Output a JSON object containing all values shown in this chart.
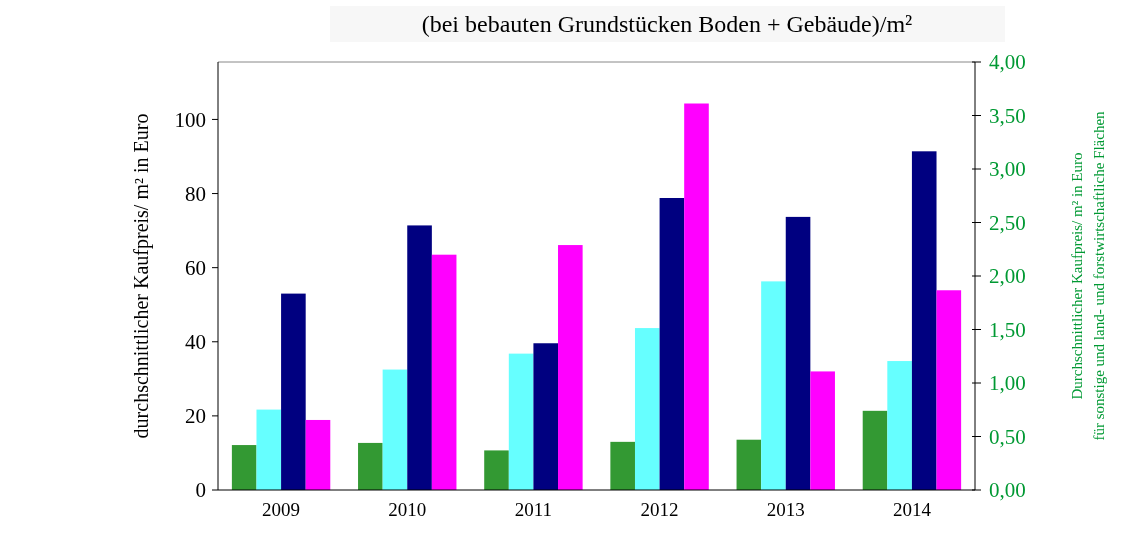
{
  "chart_data": {
    "type": "bar",
    "title": "(bei bebauten Grundstücken Boden + Gebäude)/m²",
    "ylabel": "durchschnittlicher Kaufpreis/ m² in Euro",
    "y2label": "Durchschnittlicher Kaufpreis/ m² in Euro\nfür sonstige und land- und forstwirtschaftliche Flächen",
    "categories": [
      "2009",
      "2010",
      "2011",
      "2012",
      "2013",
      "2014"
    ],
    "series": [
      {
        "color": "#339933",
        "axis": "y2",
        "values": [
          0.42,
          0.44,
          0.37,
          0.45,
          0.47,
          0.74
        ]
      },
      {
        "color": "#66ffff",
        "values": [
          21.7,
          32.5,
          36.8,
          43.7,
          56.3,
          34.8
        ]
      },
      {
        "color": "#000080",
        "values": [
          53,
          71.4,
          39.6,
          78.8,
          73.7,
          91.4
        ]
      },
      {
        "color": "#ff00ff",
        "values": [
          18.9,
          63.5,
          66.1,
          104.3,
          32,
          53.9
        ]
      }
    ],
    "ylim": [
      0,
      115.5
    ],
    "yticks": [
      0,
      20,
      40,
      60,
      80,
      100
    ],
    "y2lim": [
      0,
      4
    ],
    "y2ticks": [
      {
        "value": 0,
        "label": "0,00"
      },
      {
        "value": 0.5,
        "label": "0,50"
      },
      {
        "value": 1,
        "label": "1,00"
      },
      {
        "value": 1.5,
        "label": "1,50"
      },
      {
        "value": 2,
        "label": "2,00"
      },
      {
        "value": 2.5,
        "label": "2,50"
      },
      {
        "value": 3,
        "label": "3,00"
      },
      {
        "value": 3.5,
        "label": "3,50"
      },
      {
        "value": 4,
        "label": "4,00"
      }
    ],
    "grid": false
  }
}
